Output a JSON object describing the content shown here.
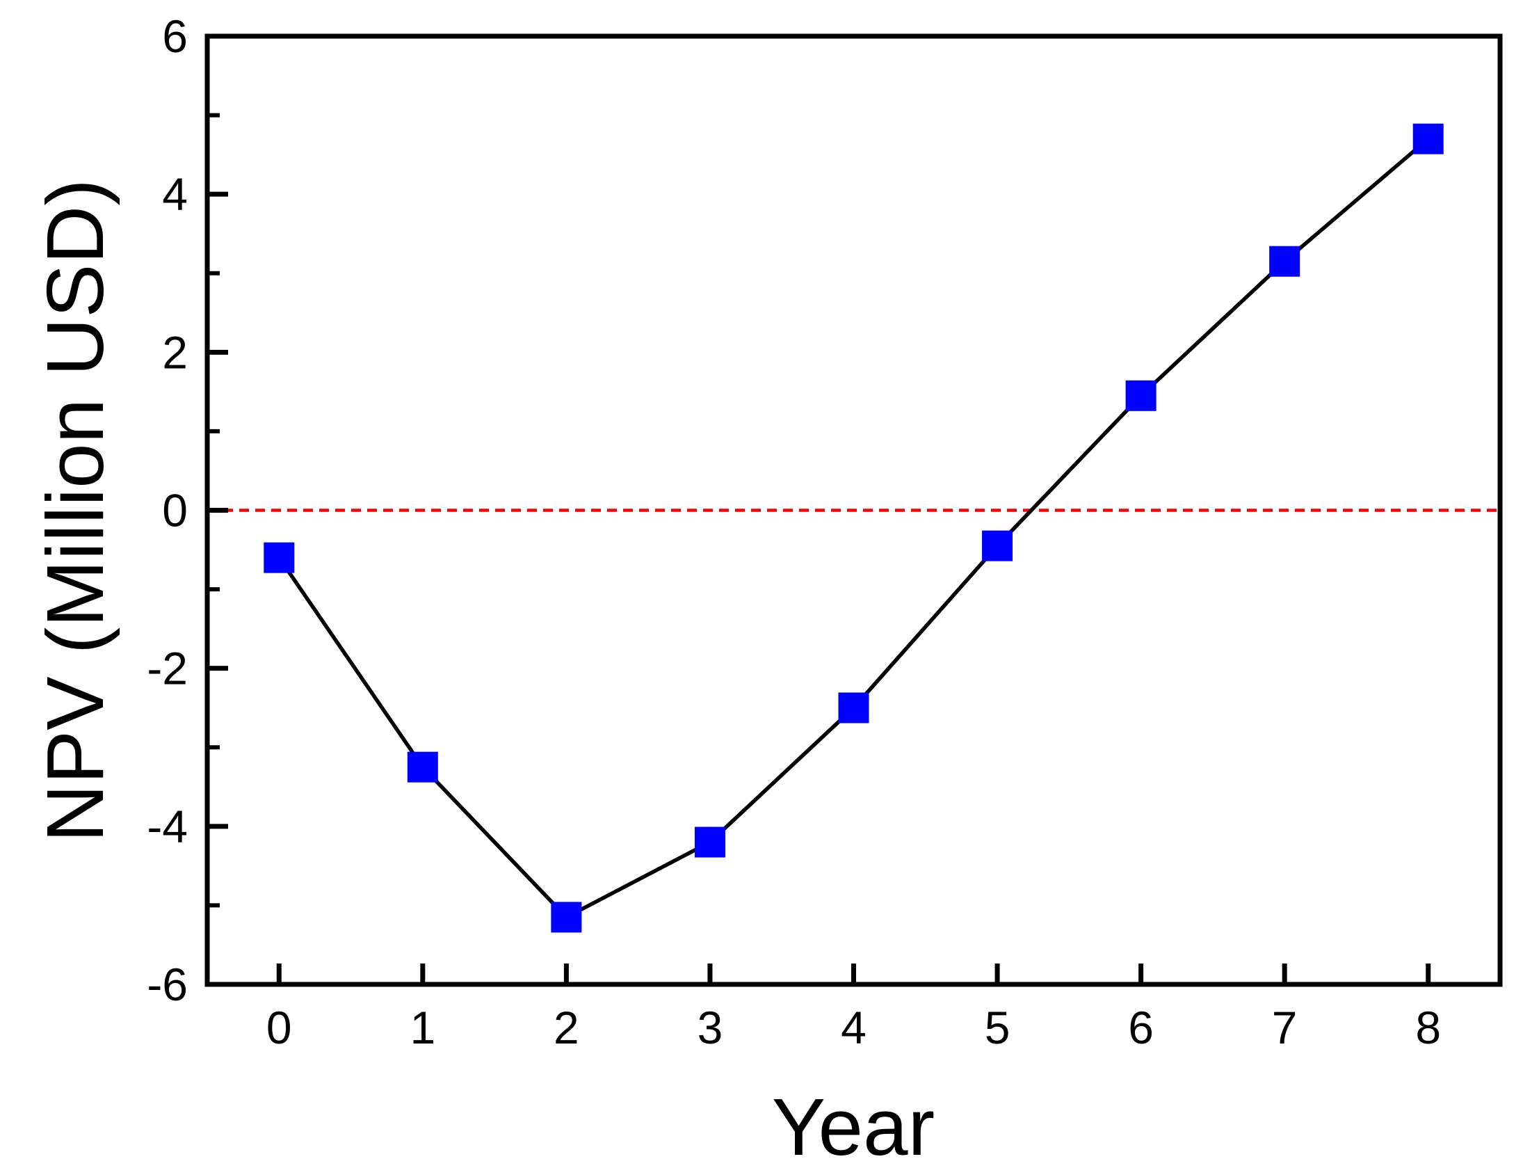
{
  "figure": {
    "background": "#ffffff",
    "axis_color": "#000000"
  },
  "chart_data": {
    "type": "line",
    "title": "",
    "xlabel": "Year",
    "ylabel": "NPV (Million USD)",
    "x": [
      0,
      1,
      2,
      3,
      4,
      5,
      6,
      7,
      8
    ],
    "series": [
      {
        "name": "NPV",
        "values": [
          -0.6,
          -3.25,
          -5.15,
          -4.2,
          -2.5,
          -0.45,
          1.45,
          3.15,
          4.7
        ],
        "marker": "square",
        "marker_color": "#0000ff",
        "line_color": "#000000"
      }
    ],
    "xlim": [
      -0.5,
      8.5
    ],
    "ylim": [
      -6,
      6
    ],
    "xticks": [
      0,
      1,
      2,
      3,
      4,
      5,
      6,
      7,
      8
    ],
    "yticks": [
      6,
      4,
      2,
      0,
      -2,
      -4,
      -6
    ],
    "yminorticks": [
      5,
      3,
      1,
      -1,
      -3,
      -5
    ],
    "grid": false,
    "legend": "none",
    "zero_line": {
      "y": 0,
      "color": "#ff0000",
      "style": "dashed"
    }
  }
}
